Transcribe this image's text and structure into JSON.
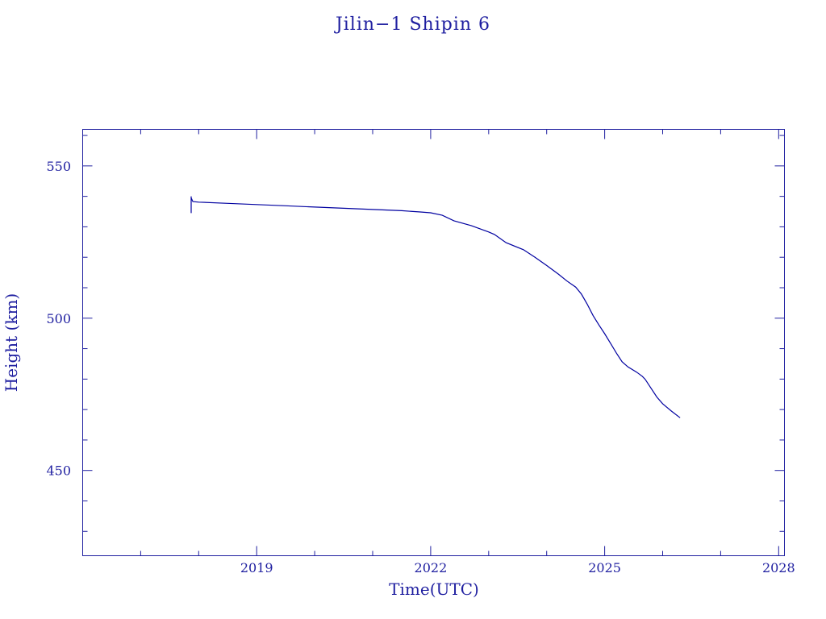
{
  "chart_data": {
    "type": "line",
    "title": "Jilin−1 Shipin 6",
    "xlabel": "Time(UTC)",
    "ylabel": "Height (km)",
    "xlim": [
      2016.0,
      2028.1
    ],
    "ylim": [
      422,
      562
    ],
    "x_ticks": [
      2019,
      2022,
      2025,
      2028
    ],
    "x_tick_labels": [
      "2019",
      "2022",
      "2025",
      "2028"
    ],
    "y_ticks": [
      450,
      500,
      550
    ],
    "y_tick_labels": [
      "450",
      "500",
      "550"
    ],
    "grid": false,
    "colors": {
      "frame": "#1f1fa0",
      "series": "#0000a0"
    },
    "series": [
      {
        "x": [
          2017.87,
          2017.9,
          2018.0,
          2018.5,
          2019.0,
          2019.5,
          2020.0,
          2020.5,
          2021.0,
          2021.5,
          2021.8,
          2022.0,
          2022.2,
          2022.4,
          2022.7,
          2023.0,
          2023.1,
          2023.3,
          2023.6,
          2023.8,
          2024.0,
          2024.2,
          2024.35,
          2024.5,
          2024.6,
          2024.7,
          2024.8,
          2024.9,
          2025.0,
          2025.1,
          2025.2,
          2025.3,
          2025.4,
          2025.55,
          2025.65,
          2025.7,
          2025.8,
          2025.9,
          2026.0,
          2026.15,
          2026.3
        ],
        "y": [
          539.5,
          538.3,
          538.1,
          537.7,
          537.3,
          536.9,
          536.5,
          536.1,
          535.7,
          535.3,
          534.9,
          534.6,
          533.8,
          532.0,
          530.4,
          528.3,
          527.5,
          524.8,
          522.5,
          520.0,
          517.3,
          514.5,
          512.2,
          510.2,
          507.9,
          504.6,
          500.9,
          497.8,
          494.9,
          491.8,
          488.6,
          485.7,
          484.0,
          482.3,
          480.9,
          479.9,
          477.0,
          474.1,
          471.9,
          469.5,
          467.3
        ]
      }
    ]
  }
}
